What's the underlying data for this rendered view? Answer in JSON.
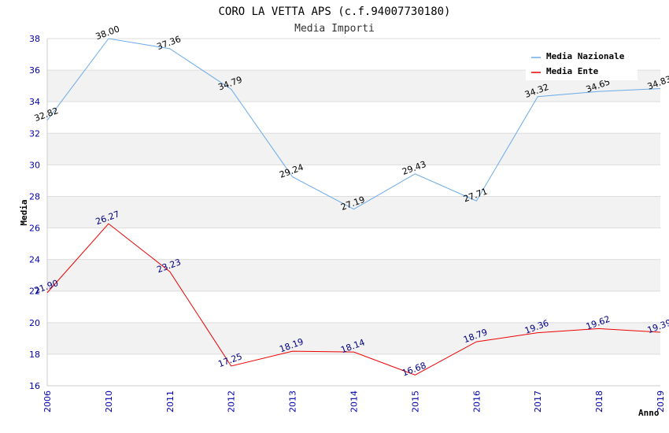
{
  "chart_data": {
    "type": "line",
    "title": "CORO LA VETTA APS (c.f.94007730180)",
    "subtitle": "Media Importi",
    "xlabel": "Anno",
    "ylabel": "Media",
    "categories": [
      "2006",
      "2010",
      "2011",
      "2012",
      "2013",
      "2014",
      "2015",
      "2016",
      "2017",
      "2018",
      "2019"
    ],
    "ylim": [
      16,
      38
    ],
    "yticks": [
      16,
      18,
      20,
      22,
      24,
      26,
      28,
      30,
      32,
      34,
      36,
      38
    ],
    "grid": true,
    "legend_position": "top-right",
    "series": [
      {
        "name": "Media Nazionale",
        "color": "#6aaae8",
        "label_color": "#000000",
        "values": [
          32.82,
          38.0,
          37.36,
          34.79,
          29.24,
          27.19,
          29.43,
          27.71,
          34.32,
          34.65,
          34.83
        ],
        "labels": [
          "32.82",
          "38.00",
          "37.36",
          "34.79",
          "29.24",
          "27.19",
          "29.43",
          "27.71",
          "34.32",
          "34.65",
          "34.83"
        ]
      },
      {
        "name": "Media Ente",
        "color": "#ee0000",
        "label_color": "#000080",
        "values": [
          21.9,
          26.27,
          23.23,
          17.25,
          18.19,
          18.14,
          16.68,
          18.79,
          19.36,
          19.62,
          19.39
        ],
        "labels": [
          "21.90",
          "26.27",
          "23.23",
          "17.25",
          "18.19",
          "18.14",
          "16.68",
          "18.79",
          "19.36",
          "19.62",
          "19.39"
        ]
      }
    ]
  }
}
